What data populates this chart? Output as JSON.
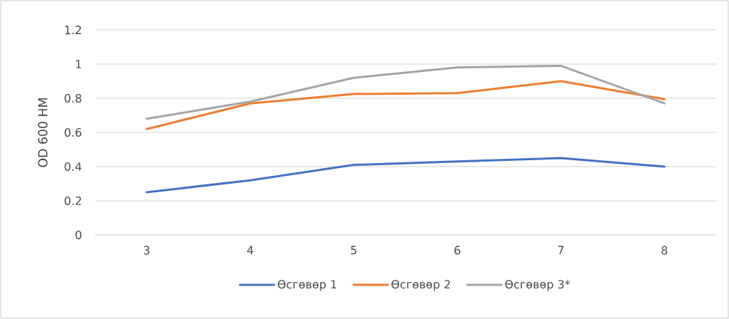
{
  "chart_data": {
    "type": "line",
    "ylabel": "OD 600 НМ",
    "categories": [
      "3",
      "4",
      "5",
      "6",
      "7",
      "8"
    ],
    "series": [
      {
        "name": "Өсгөвөр 1",
        "color": "#4472c4",
        "values": [
          0.25,
          0.32,
          0.41,
          0.43,
          0.45,
          0.4
        ]
      },
      {
        "name": "Өсгөвөр 2",
        "color": "#ed7d31",
        "values": [
          0.62,
          0.77,
          0.825,
          0.83,
          0.9,
          0.795
        ]
      },
      {
        "name": "Өсгөвөр 3*",
        "color": "#a5a5a5",
        "values": [
          0.68,
          0.78,
          0.92,
          0.98,
          0.99,
          0.77
        ]
      }
    ],
    "ylim": [
      0,
      1.2
    ],
    "yticks": [
      0,
      0.2,
      0.4,
      0.6,
      0.8,
      1,
      1.2
    ],
    "grid": "y",
    "legend": "bottom",
    "marker": "none",
    "line_style": "solid"
  }
}
